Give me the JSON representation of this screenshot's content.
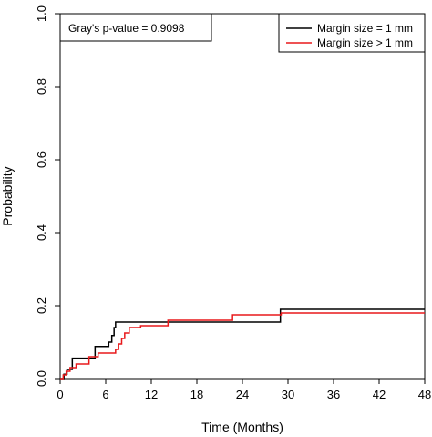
{
  "chart_data": {
    "type": "line",
    "step": true,
    "xlabel": "Time (Months)",
    "ylabel": "Probability",
    "xlim": [
      0,
      48
    ],
    "ylim": [
      0,
      1
    ],
    "xticks": [
      "0",
      "6",
      "12",
      "18",
      "24",
      "30",
      "36",
      "42",
      "48"
    ],
    "yticks": [
      "0.0",
      "0.2",
      "0.4",
      "0.6",
      "0.8",
      "1.0"
    ],
    "annotation": "Gray's p-value = 0.9098",
    "legend_position": "top-right",
    "grid": false,
    "series": [
      {
        "name": "Margin size = 1 mm",
        "color": "#000000",
        "points": [
          [
            0,
            0
          ],
          [
            0.5,
            0
          ],
          [
            0.5,
            0.012
          ],
          [
            0.9,
            0.012
          ],
          [
            0.9,
            0.025
          ],
          [
            1.6,
            0.025
          ],
          [
            1.6,
            0.056
          ],
          [
            4.6,
            0.056
          ],
          [
            4.6,
            0.088
          ],
          [
            6.4,
            0.088
          ],
          [
            6.4,
            0.1
          ],
          [
            6.8,
            0.1
          ],
          [
            6.8,
            0.118
          ],
          [
            7.1,
            0.118
          ],
          [
            7.1,
            0.14
          ],
          [
            7.3,
            0.14
          ],
          [
            7.3,
            0.155
          ],
          [
            12.0,
            0.155
          ],
          [
            12.0,
            0.155
          ],
          [
            29.0,
            0.155
          ],
          [
            29.0,
            0.19
          ],
          [
            48,
            0.19
          ]
        ]
      },
      {
        "name": "Margin size > 1 mm",
        "color": "#e8191b",
        "points": [
          [
            0,
            0
          ],
          [
            0.4,
            0
          ],
          [
            0.4,
            0.01
          ],
          [
            0.8,
            0.01
          ],
          [
            0.8,
            0.02
          ],
          [
            1.3,
            0.02
          ],
          [
            1.3,
            0.03
          ],
          [
            2.1,
            0.03
          ],
          [
            2.1,
            0.04
          ],
          [
            3.8,
            0.04
          ],
          [
            3.8,
            0.06
          ],
          [
            5.0,
            0.06
          ],
          [
            5.0,
            0.07
          ],
          [
            7.3,
            0.07
          ],
          [
            7.3,
            0.08
          ],
          [
            7.7,
            0.08
          ],
          [
            7.7,
            0.095
          ],
          [
            8.1,
            0.095
          ],
          [
            8.1,
            0.11
          ],
          [
            8.5,
            0.11
          ],
          [
            8.5,
            0.125
          ],
          [
            9.1,
            0.125
          ],
          [
            9.1,
            0.14
          ],
          [
            10.6,
            0.14
          ],
          [
            10.6,
            0.145
          ],
          [
            14.2,
            0.145
          ],
          [
            14.2,
            0.16
          ],
          [
            22.7,
            0.16
          ],
          [
            22.7,
            0.175
          ],
          [
            29.1,
            0.175
          ],
          [
            29.1,
            0.18
          ],
          [
            48,
            0.18
          ]
        ]
      }
    ]
  }
}
